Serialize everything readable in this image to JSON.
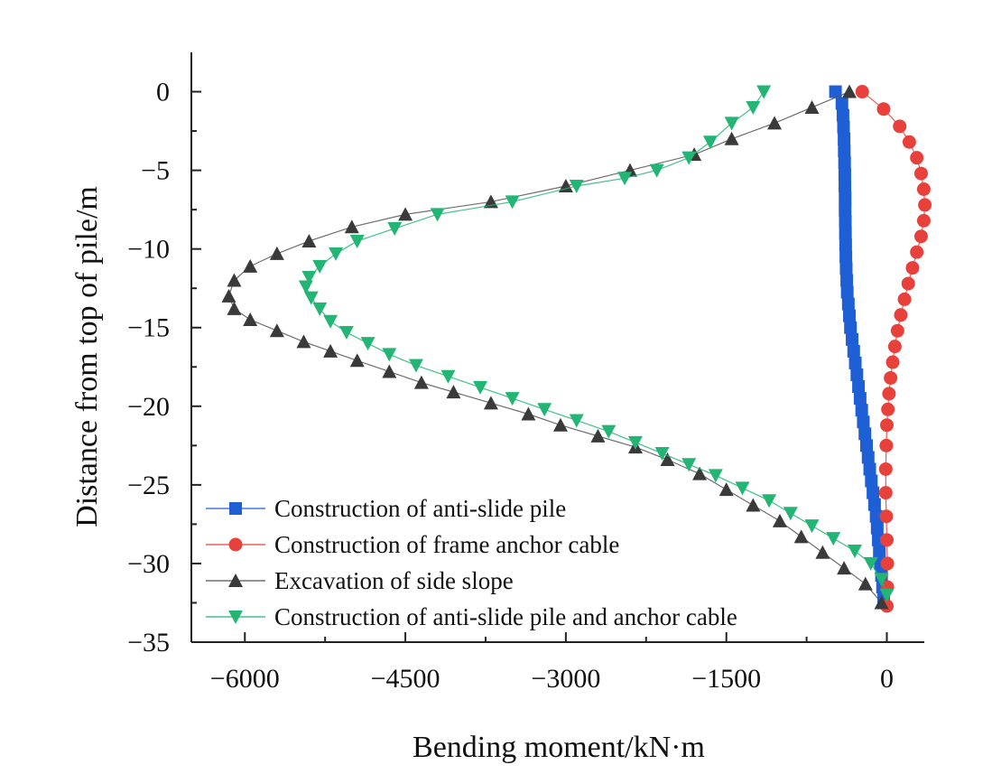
{
  "chart_data": {
    "type": "line",
    "title": "",
    "xlabel": "Bending moment/kN·m",
    "ylabel": "Distance from top of pile/m",
    "xlim": [
      -6500,
      350
    ],
    "ylim": [
      -35,
      2.5
    ],
    "xticks": [
      -6000,
      -4500,
      -3000,
      -1500,
      0
    ],
    "xtick_labels": [
      "−6000",
      "−4500",
      "−3000",
      "−1500",
      "0"
    ],
    "yticks": [
      0,
      -5,
      -10,
      -15,
      -20,
      -25,
      -30,
      -35
    ],
    "ytick_labels": [
      "0",
      "−5",
      "−10",
      "−15",
      "−20",
      "−25",
      "−30",
      "−35"
    ],
    "grid": false,
    "legend_position": "bottom-left",
    "series": [
      {
        "name": "Construction of anti-slide pile",
        "color": "#1f5fd6",
        "marker": "square",
        "x": [
          -480,
          -420,
          -410,
          -405,
          -400,
          -398,
          -395,
          -393,
          -392,
          -390,
          -390,
          -388,
          -387,
          -385,
          -383,
          -380,
          -375,
          -370,
          -360,
          -350,
          -340,
          -325,
          -310,
          -295,
          -280,
          -265,
          -250,
          -235,
          -220,
          -205,
          -190,
          -175,
          -160,
          -145,
          -130,
          -115,
          -100,
          -90,
          -80,
          -70,
          -60,
          -50,
          -40,
          -30
        ],
        "y": [
          0,
          -0.75,
          -1.5,
          -2.25,
          -3,
          -3.75,
          -4.5,
          -5.25,
          -6,
          -6.75,
          -7.5,
          -8.25,
          -9,
          -9.75,
          -10.5,
          -11.25,
          -12,
          -12.75,
          -13.5,
          -14.25,
          -15,
          -15.75,
          -16.5,
          -17.25,
          -18,
          -18.75,
          -19.5,
          -20.25,
          -21,
          -21.75,
          -22.5,
          -23.25,
          -24,
          -24.75,
          -25.5,
          -26.25,
          -27,
          -27.75,
          -28.5,
          -29.25,
          -30,
          -30.75,
          -31.5,
          -32.25
        ]
      },
      {
        "name": "Construction of frame anchor cable",
        "color": "#e8403a",
        "marker": "circle",
        "x": [
          -230,
          -30,
          120,
          210,
          280,
          320,
          345,
          355,
          345,
          320,
          280,
          240,
          200,
          165,
          130,
          100,
          75,
          55,
          35,
          20,
          10,
          0,
          -5,
          -10,
          -10,
          -5,
          0,
          5,
          5,
          0
        ],
        "y": [
          0,
          -1.1,
          -2.2,
          -3.2,
          -4.2,
          -5.2,
          -6.2,
          -7.2,
          -8.2,
          -9.2,
          -10.2,
          -11.2,
          -12.2,
          -13.2,
          -14.2,
          -15.2,
          -16.2,
          -17.2,
          -18.2,
          -19.2,
          -20.2,
          -21.2,
          -22.5,
          -24,
          -25.5,
          -27,
          -28.5,
          -30,
          -31.5,
          -32.7
        ]
      },
      {
        "name": "Excavation of side slope",
        "color": "#3a3a3a",
        "marker": "triangle-up",
        "x": [
          -350,
          -700,
          -1050,
          -1450,
          -1800,
          -2400,
          -3000,
          -3700,
          -4500,
          -5000,
          -5400,
          -5700,
          -5950,
          -6100,
          -6150,
          -6100,
          -5950,
          -5700,
          -5450,
          -5200,
          -4950,
          -4650,
          -4350,
          -4050,
          -3700,
          -3350,
          -3050,
          -2700,
          -2350,
          -2050,
          -1750,
          -1500,
          -1250,
          -1000,
          -800,
          -600,
          -400,
          -200,
          -50
        ],
        "y": [
          0,
          -1,
          -2,
          -3,
          -4,
          -5,
          -6,
          -7,
          -7.8,
          -8.6,
          -9.5,
          -10.3,
          -11.1,
          -12,
          -13,
          -13.8,
          -14.5,
          -15.2,
          -15.9,
          -16.5,
          -17.1,
          -17.8,
          -18.5,
          -19.1,
          -19.8,
          -20.5,
          -21.2,
          -21.9,
          -22.6,
          -23.4,
          -24.3,
          -25.3,
          -26.3,
          -27.3,
          -28.3,
          -29.3,
          -30.3,
          -31.3,
          -32.5
        ]
      },
      {
        "name": "Construction of anti-slide pile and anchor cable",
        "color": "#22b573",
        "marker": "triangle-down",
        "x": [
          -1150,
          -1250,
          -1450,
          -1650,
          -1850,
          -2150,
          -2450,
          -2900,
          -3500,
          -4200,
          -4600,
          -4950,
          -5150,
          -5300,
          -5400,
          -5430,
          -5380,
          -5300,
          -5200,
          -5050,
          -4850,
          -4650,
          -4400,
          -4100,
          -3800,
          -3500,
          -3200,
          -2900,
          -2600,
          -2350,
          -2100,
          -1850,
          -1600,
          -1350,
          -1100,
          -900,
          -700,
          -500,
          -300,
          -150,
          -50,
          0
        ],
        "y": [
          0,
          -1,
          -2,
          -3.2,
          -4.2,
          -5,
          -5.5,
          -6,
          -7,
          -7.8,
          -8.7,
          -9.5,
          -10.3,
          -11.1,
          -11.8,
          -12.4,
          -13.1,
          -13.8,
          -14.6,
          -15.3,
          -16,
          -16.7,
          -17.4,
          -18.1,
          -18.8,
          -19.5,
          -20.2,
          -20.9,
          -21.6,
          -22.3,
          -23,
          -23.7,
          -24.4,
          -25.2,
          -26,
          -26.8,
          -27.6,
          -28.4,
          -29.2,
          -30,
          -31,
          -32
        ]
      }
    ]
  }
}
